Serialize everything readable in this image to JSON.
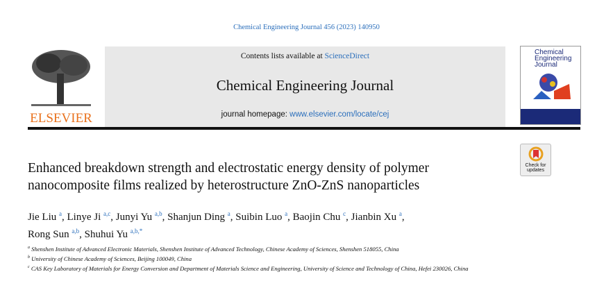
{
  "journal_ref": "Chemical Engineering Journal 456 (2023) 140950",
  "header": {
    "contents_prefix": "Contents lists available at ",
    "contents_link": "ScienceDirect",
    "journal_name": "Chemical Engineering Journal",
    "homepage_prefix": "journal homepage: ",
    "homepage_link": "www.elsevier.com/locate/cej",
    "publisher": "ELSEVIER",
    "cover_title": [
      "Chemical",
      "Engineering",
      "Journal"
    ]
  },
  "check_updates": [
    "Check for",
    "updates"
  ],
  "title": "Enhanced breakdown strength and electrostatic energy density of polymer nanocomposite films realized by heterostructure ZnO-ZnS nanoparticles",
  "authors": [
    {
      "name": "Jie Liu",
      "sup": "a"
    },
    {
      "name": "Linye Ji",
      "sup": "a,c"
    },
    {
      "name": "Junyi Yu",
      "sup": "a,b"
    },
    {
      "name": "Shanjun Ding",
      "sup": "a"
    },
    {
      "name": "Suibin Luo",
      "sup": "a"
    },
    {
      "name": "Baojin Chu",
      "sup": "c"
    },
    {
      "name": "Jianbin Xu",
      "sup": "a"
    },
    {
      "name": "Rong Sun",
      "sup": "a,b"
    },
    {
      "name": "Shuhui Yu",
      "sup": "a,b,*"
    }
  ],
  "affiliations": [
    {
      "sup": "a",
      "text": "Shenshen Institute of Advanced Electronic Materials, Shenshen Institute of Advanced Technology, Chinese Academy of Sciences, Shenshen 518055, China"
    },
    {
      "sup": "b",
      "text": "University of Chinese Academy of Sciences, Beijing 100049, China"
    },
    {
      "sup": "c",
      "text": "CAS Key Laboratory of Materials for Energy Conversion and Department of Materials Science and Engineering, University of Science and Technology of China, Hefei 230026, China"
    }
  ],
  "colors": {
    "link": "#2a6ebb",
    "elsevier_orange": "#e9711c",
    "band": "#e8e8e8"
  }
}
